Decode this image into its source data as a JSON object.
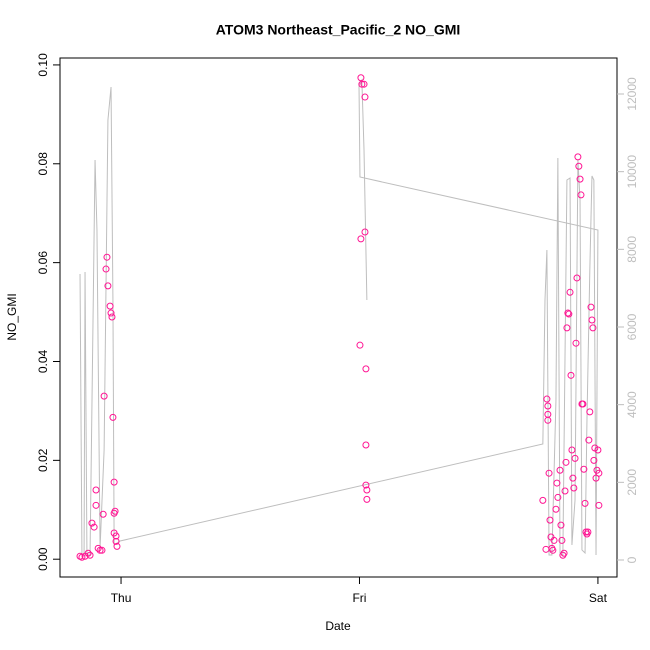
{
  "chart_data": {
    "type": "scatter",
    "title": "ATOM3 Northeast_Pacific_2 NO_GMI",
    "xlabel": "Date",
    "ylabel": "NO_GMI",
    "xlim": [
      -0.256,
      2.08
    ],
    "xticks": [
      {
        "value": 0,
        "label": "Thu"
      },
      {
        "value": 1,
        "label": "Fri"
      },
      {
        "value": 2,
        "label": "Sat"
      }
    ],
    "ylim": [
      -0.0036,
      0.1014
    ],
    "yticks": [
      {
        "value": 0,
        "label": "0.00"
      },
      0.02,
      0.04,
      0.06,
      0.08,
      {
        "value": 0.1,
        "label": "0.10"
      }
    ],
    "y2lim": [
      -438,
      12927
    ],
    "y2ticks": [
      0,
      2000,
      4000,
      6000,
      8000,
      10000,
      12000
    ],
    "y2color": "#bebebe",
    "series": [
      {
        "type": "line",
        "axis": "y2",
        "color": "#bebebe",
        "x": [
          -0.172,
          -0.164,
          -0.155,
          -0.151,
          -0.143,
          -0.13,
          -0.109,
          -0.101,
          -0.088,
          -0.071,
          -0.055,
          -0.042,
          -0.034,
          -0.029,
          -0.004,
          1.769,
          1.778,
          1.786,
          1.795,
          1.807,
          1.824,
          1.832,
          1.841,
          1.853,
          1.87,
          1.883,
          1.891,
          1.904,
          1.916,
          1.925,
          1.933,
          1.946,
          1.954,
          1.966,
          1.975,
          1.983,
          1.992,
          2.0,
          1.002,
          0.998,
          1.01,
          1.019,
          1.031
        ],
        "values": [
          7365,
          129,
          129,
          7416,
          129,
          129,
          10300,
          8498,
          309,
          2833,
          11330,
          12180,
          6695,
          386,
          489,
          2987,
          6695,
          7983,
          129,
          129,
          4120,
          10352,
          180,
          129,
          9785,
          9837,
          386,
          1545,
          10300,
          9270,
          258,
          180,
          3605,
          7468,
          9888,
          9785,
          129,
          8498,
          9862,
          12231,
          12360,
          10558,
          6695
        ]
      },
      {
        "type": "scatter",
        "color": "#ff1493",
        "x": [
          -0.172,
          -0.164,
          -0.151,
          -0.138,
          -0.13,
          -0.122,
          -0.113,
          -0.105,
          -0.105,
          -0.096,
          -0.088,
          -0.08,
          -0.075,
          -0.071,
          -0.063,
          -0.059,
          -0.055,
          -0.046,
          -0.042,
          -0.038,
          -0.034,
          -0.029,
          -0.025,
          -0.021,
          -0.017,
          -0.029,
          -0.029,
          -0.021,
          1.006,
          1.01,
          1.019,
          1.023,
          1.006,
          1.023,
          1.002,
          1.027,
          1.027,
          1.027,
          1.031,
          1.031,
          1.769,
          1.782,
          1.786,
          1.79,
          1.79,
          1.79,
          1.795,
          1.799,
          1.803,
          1.807,
          1.811,
          1.816,
          1.824,
          1.828,
          1.832,
          1.841,
          1.845,
          1.849,
          1.853,
          1.858,
          1.862,
          1.866,
          1.87,
          1.874,
          1.878,
          1.883,
          1.887,
          1.891,
          1.895,
          1.899,
          1.904,
          1.908,
          1.912,
          1.916,
          1.92,
          1.925,
          1.929,
          1.933,
          1.937,
          1.941,
          1.946,
          1.95,
          1.954,
          1.958,
          1.962,
          1.966,
          1.971,
          1.975,
          1.979,
          1.983,
          1.987,
          1.992,
          1.996,
          2.0,
          2.004,
          2.004
        ],
        "values": [
          0.0006,
          0.0004,
          0.0006,
          0.0012,
          0.0008,
          0.0073,
          0.0065,
          0.014,
          0.0109,
          0.0022,
          0.0018,
          0.0018,
          0.0091,
          0.033,
          0.0587,
          0.0611,
          0.0553,
          0.0512,
          0.0498,
          0.049,
          0.0287,
          0.0156,
          0.0097,
          0.0036,
          0.0026,
          0.0093,
          0.0053,
          0.0047,
          0.0974,
          0.0961,
          0.0961,
          0.0935,
          0.0648,
          0.0662,
          0.0433,
          0.0385,
          0.0231,
          0.015,
          0.014,
          0.0121,
          0.0119,
          0.002,
          0.0324,
          0.031,
          0.0293,
          0.0281,
          0.0174,
          0.0079,
          0.0045,
          0.0022,
          0.0018,
          0.0038,
          0.0101,
          0.0154,
          0.0125,
          0.018,
          0.0069,
          0.0038,
          0.0008,
          0.0012,
          0.0138,
          0.0196,
          0.0468,
          0.0498,
          0.0496,
          0.054,
          0.0372,
          0.0221,
          0.0164,
          0.0144,
          0.0204,
          0.0437,
          0.0569,
          0.0814,
          0.0795,
          0.0769,
          0.0737,
          0.0314,
          0.0314,
          0.0182,
          0.0113,
          0.0055,
          0.0051,
          0.0055,
          0.0241,
          0.0298,
          0.051,
          0.0484,
          0.0468,
          0.02,
          0.0225,
          0.0164,
          0.018,
          0.0221,
          0.0109,
          0.0174
        ]
      }
    ]
  }
}
